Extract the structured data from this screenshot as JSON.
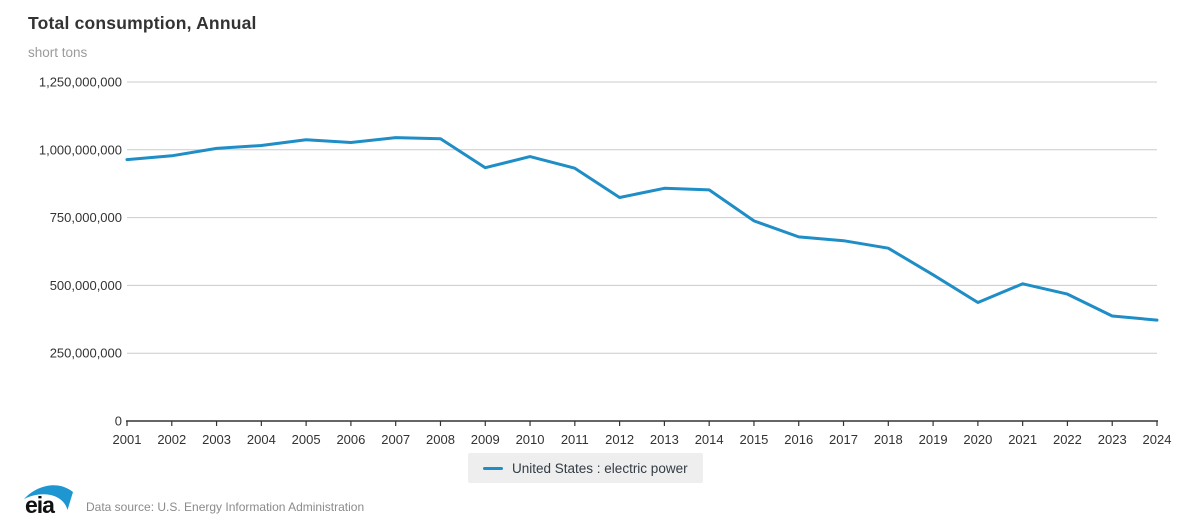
{
  "header": {
    "title": "Total consumption, Annual",
    "subtitle": "short tons"
  },
  "legend": {
    "items": [
      {
        "label": "United States : electric power",
        "color": "#1f8dc6"
      }
    ]
  },
  "footer": {
    "logo_text": "eia",
    "source_text": "Data source: U.S. Energy Information Administration"
  },
  "colors": {
    "accent": "#1f8dc6",
    "gridline": "#cccccc",
    "axis": "#333333",
    "tick_text": "#333333",
    "muted_text": "#9b9b9b",
    "legend_bg": "#eeeeee",
    "logo_swoosh": "#1e96d2",
    "logo_text": "#111111"
  },
  "chart_data": {
    "type": "line",
    "title": "Total consumption, Annual",
    "ylabel": "short tons",
    "xlabel": "",
    "x": [
      2001,
      2002,
      2003,
      2004,
      2005,
      2006,
      2007,
      2008,
      2009,
      2010,
      2011,
      2012,
      2013,
      2014,
      2015,
      2016,
      2017,
      2018,
      2019,
      2020,
      2021,
      2022,
      2023,
      2024
    ],
    "series": [
      {
        "name": "United States : electric power",
        "color": "#1f8dc6",
        "values": [
          964000000,
          978000000,
          1005000000,
          1016000000,
          1037000000,
          1027000000,
          1045000000,
          1041000000,
          934000000,
          975000000,
          932000000,
          824000000,
          858000000,
          852000000,
          738000000,
          679000000,
          665000000,
          637000000,
          539000000,
          437000000,
          506000000,
          468000000,
          387000000,
          372000000
        ]
      }
    ],
    "ylim": [
      0,
      1250000000
    ],
    "yticks": [
      0,
      250000000,
      500000000,
      750000000,
      1000000000,
      1250000000
    ],
    "grid": "horizontal",
    "legend_position": "bottom"
  }
}
